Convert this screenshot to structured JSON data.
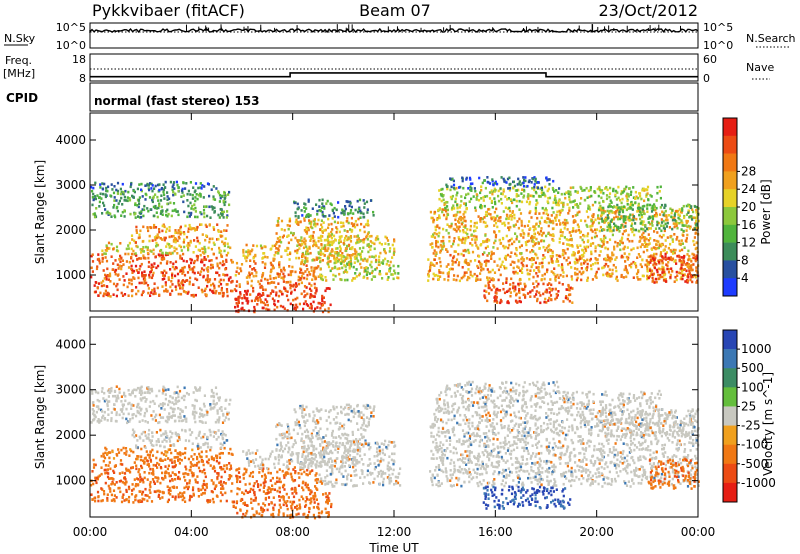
{
  "header": {
    "radar": "Pykkvibaer (fitACF)",
    "beam": "Beam 07",
    "date": "23/Oct/2012"
  },
  "sky_panel": {
    "left_label": "N.Sky",
    "left_ticks": [
      "10^5",
      "10^0"
    ],
    "right_ticks": [
      "10^5",
      "10^0"
    ],
    "right_label": "N.Search",
    "right_legend_line": "dotted"
  },
  "freq_panel": {
    "left_label_1": "Freq.",
    "left_label_2": "[MHz]",
    "left_ticks": [
      "18",
      "8"
    ],
    "right_ticks": [
      "60",
      "0"
    ],
    "right_label": "Nave",
    "right_legend_line": "dotted",
    "freq_steps": [
      {
        "t": 0.0,
        "mhz": 9.6
      },
      {
        "t": 7.9,
        "mhz": 9.6
      },
      {
        "t": 7.9,
        "mhz": 11.0
      },
      {
        "t": 18.0,
        "mhz": 11.0
      },
      {
        "t": 18.0,
        "mhz": 9.6
      },
      {
        "t": 24.0,
        "mhz": 9.6
      }
    ]
  },
  "cpid": {
    "label": "CPID",
    "text": "normal (fast stereo) 153"
  },
  "chart_data": [
    {
      "type": "heatmap",
      "title": "",
      "xlabel": "Time UT",
      "ylabel": "Slant Range [km]",
      "xlim": [
        0,
        24
      ],
      "ylim": [
        200,
        4600
      ],
      "x_ticks": [
        "00:00",
        "04:00",
        "08:00",
        "12:00",
        "16:00",
        "20:00",
        "00:00"
      ],
      "x_tick_hours": [
        0,
        4,
        8,
        12,
        16,
        20,
        24
      ],
      "y_ticks": [
        1000,
        2000,
        3000,
        4000
      ],
      "colorbar": {
        "label": "Power [dB]",
        "ticks": [
          "4",
          "8",
          "12",
          "16",
          "20",
          "24",
          "28"
        ],
        "range": [
          0,
          32
        ],
        "colors": [
          "#1e3cff",
          "#2850a0",
          "#3c8c5a",
          "#50b43c",
          "#8cc83c",
          "#e6d228",
          "#f0a01e",
          "#f07814",
          "#ec4b14",
          "#e61e14"
        ]
      },
      "features": [
        {
          "t0": 0.0,
          "t1": 5.6,
          "r0": 550,
          "r1": 1500,
          "value": 26
        },
        {
          "t0": 0.4,
          "t1": 5.6,
          "r0": 1500,
          "r1": 1750,
          "value": 18
        },
        {
          "t0": 1.6,
          "t1": 5.4,
          "r0": 1750,
          "r1": 2150,
          "value": 22
        },
        {
          "t0": 0.0,
          "t1": 5.5,
          "r0": 2300,
          "r1": 2900,
          "value": 10
        },
        {
          "t0": 0.0,
          "t1": 5.0,
          "r0": 2900,
          "r1": 3100,
          "value": 6
        },
        {
          "t0": 5.6,
          "t1": 9.5,
          "r0": 200,
          "r1": 750,
          "value": 29
        },
        {
          "t0": 5.7,
          "t1": 9.0,
          "r0": 750,
          "r1": 1300,
          "value": 24
        },
        {
          "t0": 6.0,
          "t1": 10.5,
          "r0": 1300,
          "r1": 1700,
          "value": 20
        },
        {
          "t0": 7.3,
          "t1": 11.0,
          "r0": 1700,
          "r1": 2300,
          "value": 20
        },
        {
          "t0": 8.3,
          "t1": 12.0,
          "r0": 1300,
          "r1": 1900,
          "value": 18
        },
        {
          "t0": 8.0,
          "t1": 11.2,
          "r0": 2300,
          "r1": 2700,
          "value": 8
        },
        {
          "t0": 9.0,
          "t1": 12.2,
          "r0": 900,
          "r1": 1300,
          "value": 16
        },
        {
          "t0": 13.3,
          "t1": 24.0,
          "r0": 900,
          "r1": 1500,
          "value": 22
        },
        {
          "t0": 13.4,
          "t1": 24.0,
          "r0": 1500,
          "r1": 2500,
          "value": 20
        },
        {
          "t0": 13.6,
          "t1": 22.5,
          "r0": 2500,
          "r1": 3000,
          "value": 15
        },
        {
          "t0": 14.0,
          "t1": 18.5,
          "r0": 2950,
          "r1": 3200,
          "value": 5
        },
        {
          "t0": 15.5,
          "t1": 19.0,
          "r0": 400,
          "r1": 900,
          "value": 26
        },
        {
          "t0": 20.0,
          "t1": 24.0,
          "r0": 2000,
          "r1": 2600,
          "value": 12
        },
        {
          "t0": 22.0,
          "t1": 24.0,
          "r0": 850,
          "r1": 1500,
          "value": 28
        }
      ]
    },
    {
      "type": "heatmap",
      "title": "",
      "xlabel": "Time UT",
      "ylabel": "Slant Range [km]",
      "xlim": [
        0,
        24
      ],
      "ylim": [
        200,
        4600
      ],
      "x_ticks": [
        "00:00",
        "04:00",
        "08:00",
        "12:00",
        "16:00",
        "20:00",
        "00:00"
      ],
      "x_tick_hours": [
        0,
        4,
        8,
        12,
        16,
        20,
        24
      ],
      "y_ticks": [
        1000,
        2000,
        3000,
        4000
      ],
      "colorbar": {
        "label": "Velocity [m s^-1]",
        "ticks": [
          "1000",
          "500",
          "100",
          "25",
          "-25",
          "-100",
          "-500",
          "-1000"
        ],
        "range": [
          -1200,
          1200
        ],
        "colors": [
          "#2846b4",
          "#3c78b4",
          "#3c8c64",
          "#64be3c",
          "#c8c8c0",
          "#f0a01e",
          "#f07814",
          "#ec4b14",
          "#e61e14"
        ]
      },
      "features": [
        {
          "t0": 0.0,
          "t1": 5.6,
          "r0": 550,
          "r1": 1500,
          "value": -300
        },
        {
          "t0": 0.4,
          "t1": 5.6,
          "r0": 1500,
          "r1": 1750,
          "value": -150
        },
        {
          "t0": 1.6,
          "t1": 5.4,
          "r0": 1750,
          "r1": 2150,
          "value": 0
        },
        {
          "t0": 0.0,
          "t1": 5.5,
          "r0": 2300,
          "r1": 2900,
          "value": 0
        },
        {
          "t0": 0.0,
          "t1": 5.0,
          "r0": 2900,
          "r1": 3100,
          "value": 0
        },
        {
          "t0": 5.6,
          "t1": 9.5,
          "r0": 200,
          "r1": 750,
          "value": -300
        },
        {
          "t0": 5.7,
          "t1": 9.0,
          "r0": 750,
          "r1": 1300,
          "value": -300
        },
        {
          "t0": 6.0,
          "t1": 10.5,
          "r0": 1300,
          "r1": 1700,
          "value": 0
        },
        {
          "t0": 7.3,
          "t1": 11.0,
          "r0": 1700,
          "r1": 2300,
          "value": 0
        },
        {
          "t0": 8.3,
          "t1": 12.0,
          "r0": 1300,
          "r1": 1900,
          "value": 0
        },
        {
          "t0": 8.0,
          "t1": 11.2,
          "r0": 2300,
          "r1": 2700,
          "value": 0
        },
        {
          "t0": 9.0,
          "t1": 12.2,
          "r0": 900,
          "r1": 1300,
          "value": 0
        },
        {
          "t0": 13.3,
          "t1": 24.0,
          "r0": 900,
          "r1": 1500,
          "value": 0
        },
        {
          "t0": 13.4,
          "t1": 24.0,
          "r0": 1500,
          "r1": 2500,
          "value": 0
        },
        {
          "t0": 13.6,
          "t1": 22.5,
          "r0": 2500,
          "r1": 3000,
          "value": 0
        },
        {
          "t0": 14.0,
          "t1": 18.5,
          "r0": 2950,
          "r1": 3200,
          "value": 0
        },
        {
          "t0": 15.5,
          "t1": 19.0,
          "r0": 400,
          "r1": 900,
          "value": 800
        },
        {
          "t0": 20.0,
          "t1": 24.0,
          "r0": 2000,
          "r1": 2600,
          "value": 0
        },
        {
          "t0": 22.0,
          "t1": 24.0,
          "r0": 850,
          "r1": 1500,
          "value": -300
        }
      ]
    }
  ]
}
